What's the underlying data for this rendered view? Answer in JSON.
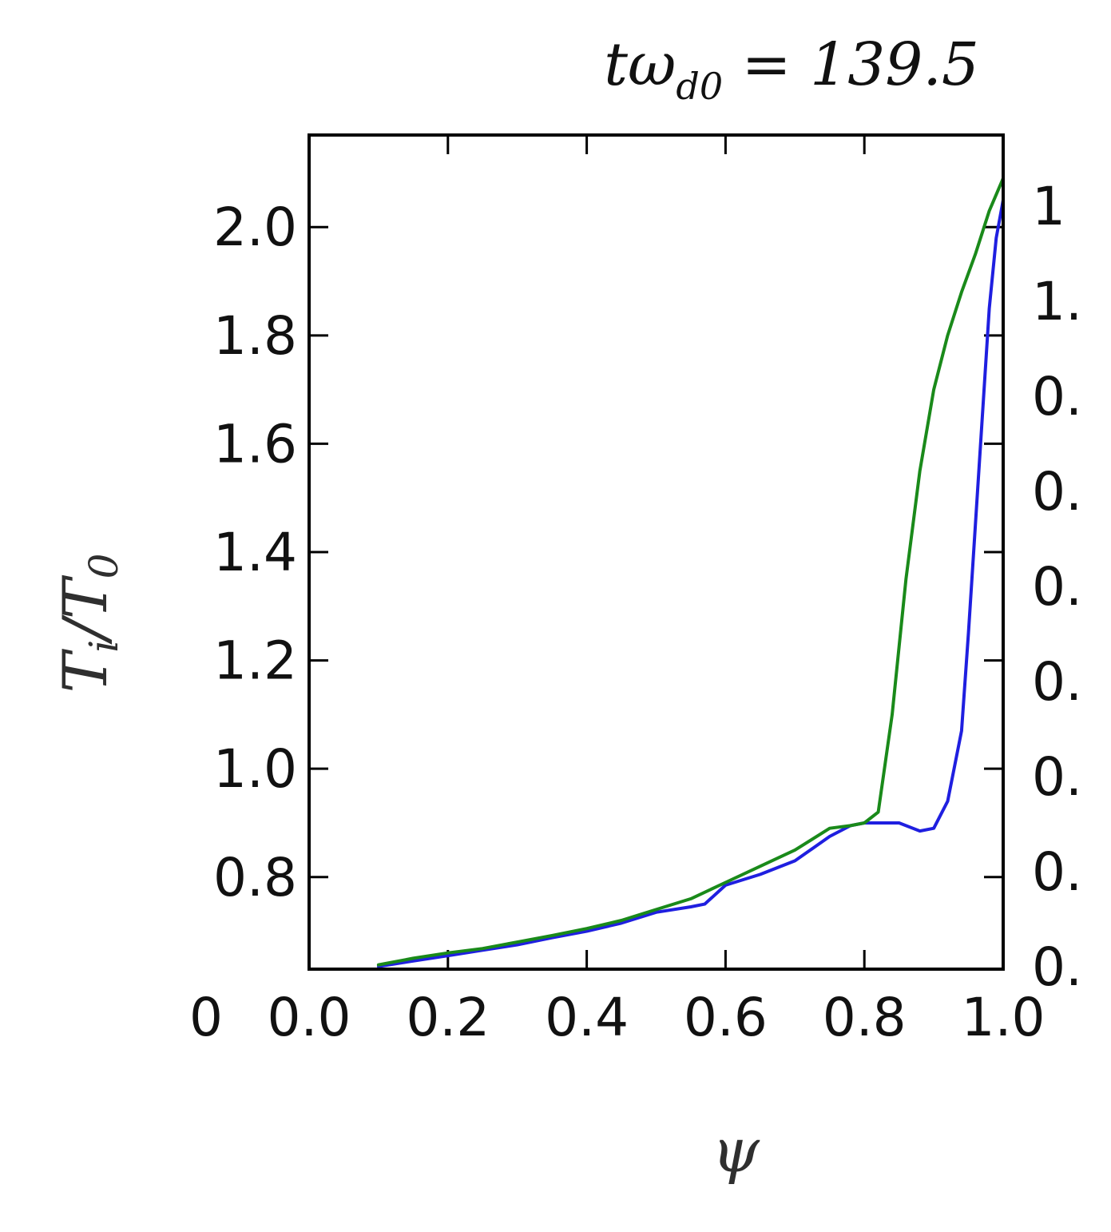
{
  "chart_data": {
    "type": "line",
    "title": "tω_d0 = 139.5",
    "title_parts": {
      "main": "tω",
      "sub": "d0",
      "rest": " = 139.5"
    },
    "xlabel": "ψ",
    "ylabel": "T_i/T_0",
    "ylabel_parts": {
      "a": "T",
      "a_sub": "i",
      "mid": "/T",
      "b_sub": "0"
    },
    "xlim": [
      0.0,
      1.0
    ],
    "ylim": [
      0.63,
      2.17
    ],
    "x_ticks": [
      0.0,
      0.2,
      0.4,
      0.6,
      0.8,
      1.0
    ],
    "x_tick_labels": [
      "0.0",
      "0.2",
      "0.4",
      "0.6",
      "0.8",
      "1.0"
    ],
    "y_ticks": [
      0.8,
      1.0,
      1.2,
      1.4,
      1.6,
      1.8,
      2.0
    ],
    "y_tick_labels": [
      "0.8",
      "1.0",
      "1.2",
      "1.4",
      "1.6",
      "1.8",
      "2.0"
    ],
    "partial_labels": {
      "x_left_extra": "0",
      "right_axis": [
        "1",
        "1.",
        "0.",
        "0.",
        "0.",
        "0.",
        "0.",
        "0.",
        "0."
      ]
    },
    "grid": false,
    "series": [
      {
        "color": "#1f1fe0",
        "x": [
          0.1,
          0.15,
          0.2,
          0.25,
          0.3,
          0.35,
          0.4,
          0.45,
          0.5,
          0.55,
          0.57,
          0.6,
          0.65,
          0.7,
          0.75,
          0.78,
          0.8,
          0.85,
          0.88,
          0.9,
          0.92,
          0.94,
          0.95,
          0.96,
          0.97,
          0.98,
          0.99,
          1.0
        ],
        "y": [
          0.635,
          0.645,
          0.655,
          0.665,
          0.675,
          0.688,
          0.7,
          0.715,
          0.735,
          0.745,
          0.75,
          0.785,
          0.805,
          0.83,
          0.875,
          0.895,
          0.9,
          0.9,
          0.885,
          0.89,
          0.94,
          1.07,
          1.25,
          1.45,
          1.65,
          1.85,
          1.98,
          2.05
        ]
      },
      {
        "color": "#1a8a1a",
        "x": [
          0.1,
          0.15,
          0.2,
          0.25,
          0.3,
          0.35,
          0.4,
          0.45,
          0.5,
          0.55,
          0.6,
          0.65,
          0.7,
          0.75,
          0.78,
          0.8,
          0.82,
          0.84,
          0.86,
          0.88,
          0.9,
          0.92,
          0.94,
          0.96,
          0.98,
          1.0
        ],
        "y": [
          0.638,
          0.65,
          0.66,
          0.668,
          0.68,
          0.692,
          0.705,
          0.72,
          0.74,
          0.76,
          0.79,
          0.82,
          0.85,
          0.89,
          0.895,
          0.9,
          0.92,
          1.1,
          1.35,
          1.55,
          1.7,
          1.8,
          1.88,
          1.95,
          2.03,
          2.09
        ]
      }
    ]
  }
}
